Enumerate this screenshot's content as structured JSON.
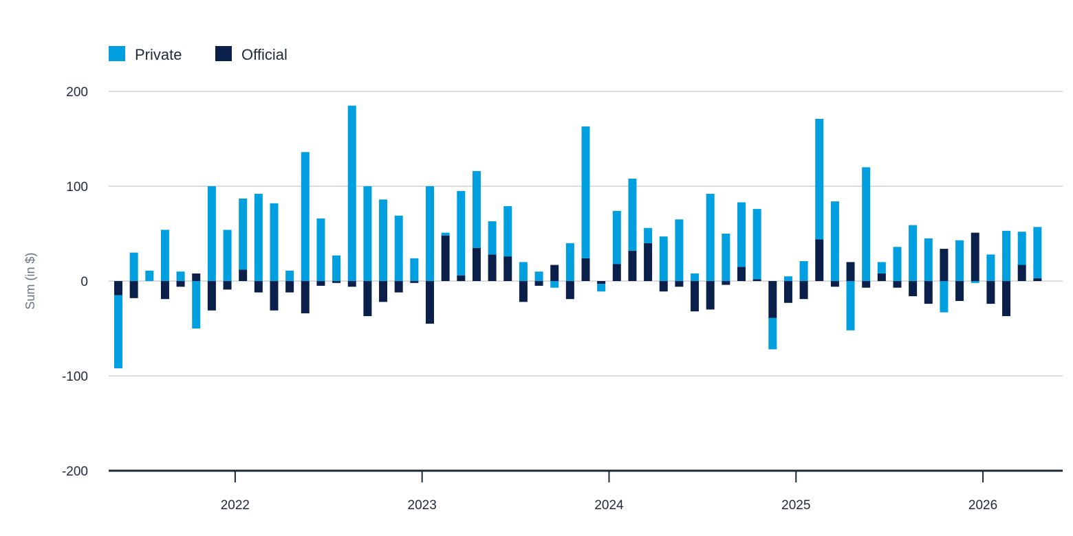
{
  "chart_data": {
    "type": "bar",
    "stacked": true,
    "ylabel": "Sum (in $)",
    "ylim": [
      -200,
      200
    ],
    "yticks": [
      200,
      100,
      0,
      -100,
      -200
    ],
    "xticks": [
      {
        "label": "2022",
        "at": 7.5
      },
      {
        "label": "2023",
        "at": 19.5
      },
      {
        "label": "2024",
        "at": 31.5
      },
      {
        "label": "2025",
        "at": 43.5
      },
      {
        "label": "2026",
        "at": 55.5
      }
    ],
    "grid": true,
    "legend_position": "top-left",
    "series": [
      {
        "name": "Private",
        "color": "#009fdf",
        "values": [
          -77,
          30,
          11,
          54,
          10,
          -50,
          100,
          54,
          75,
          92,
          82,
          11,
          136,
          66,
          27,
          185,
          100,
          86,
          69,
          24,
          100,
          3,
          89,
          81,
          35,
          53,
          20,
          10,
          -7,
          40,
          139,
          -8,
          56,
          76,
          16,
          47,
          65,
          8,
          92,
          50,
          68,
          74,
          -33,
          5,
          21,
          127,
          84,
          -52,
          120,
          12,
          36,
          59,
          45,
          -33,
          43,
          -2,
          28,
          53,
          35,
          54
        ]
      },
      {
        "name": "Official",
        "color": "#0b1f4b",
        "values": [
          -15,
          -18,
          0,
          -19,
          -6,
          8,
          -31,
          -9,
          12,
          -12,
          -31,
          -12,
          -34,
          -5,
          -2,
          -6,
          -37,
          -22,
          -12,
          -2,
          -45,
          48,
          6,
          35,
          28,
          26,
          -22,
          -5,
          17,
          -19,
          24,
          -3,
          18,
          32,
          40,
          -11,
          -6,
          -32,
          -30,
          -4,
          15,
          2,
          -39,
          -23,
          -19,
          44,
          -6,
          20,
          -7,
          8,
          -7,
          -16,
          -24,
          34,
          -21,
          51,
          -24,
          -37,
          17,
          3
        ]
      }
    ]
  }
}
